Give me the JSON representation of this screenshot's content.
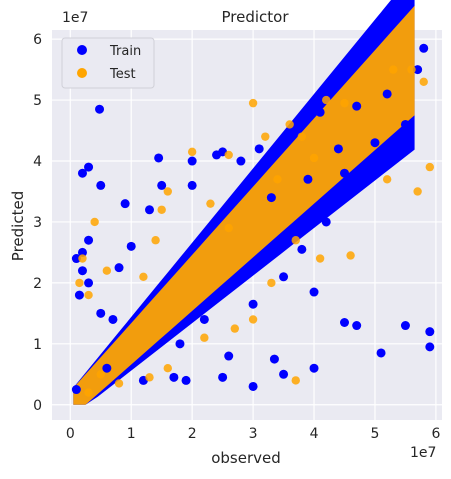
{
  "chart_data": {
    "type": "scatter",
    "title": "Predictor",
    "xlabel": "observed",
    "ylabel": "Predicted",
    "x_offset_label": "1e7",
    "y_offset_label": "1e7",
    "xlim": [
      -3000000,
      61000000
    ],
    "ylim": [
      -2500000,
      61500000
    ],
    "xticks": [
      0,
      10000000,
      20000000,
      30000000,
      40000000,
      50000000,
      60000000
    ],
    "xtick_labels": [
      "0",
      "1",
      "2",
      "3",
      "4",
      "5",
      "6"
    ],
    "yticks": [
      0,
      10000000,
      20000000,
      30000000,
      40000000,
      50000000,
      60000000
    ],
    "ytick_labels": [
      "0",
      "1",
      "2",
      "3",
      "4",
      "5",
      "6"
    ],
    "grid": true,
    "legend_position": "top-left",
    "series": [
      {
        "name": "Train",
        "color": "#0000ff",
        "points": [
          [
            1000000,
            2500000
          ],
          [
            2000000,
            38000000
          ],
          [
            4800000,
            48500000
          ],
          [
            3000000,
            39000000
          ],
          [
            5000000,
            36000000
          ],
          [
            2000000,
            25000000
          ],
          [
            3000000,
            27000000
          ],
          [
            14500000,
            40500000
          ],
          [
            20000000,
            40000000
          ],
          [
            24000000,
            41000000
          ],
          [
            25000000,
            41500000
          ],
          [
            1000000,
            24000000
          ],
          [
            2000000,
            22000000
          ],
          [
            3000000,
            20000000
          ],
          [
            1500000,
            18000000
          ],
          [
            33500000,
            7500000
          ],
          [
            40000000,
            6000000
          ],
          [
            45000000,
            13500000
          ],
          [
            47000000,
            13000000
          ],
          [
            51000000,
            8500000
          ],
          [
            55000000,
            13000000
          ],
          [
            59000000,
            12000000
          ],
          [
            59000000,
            9500000
          ],
          [
            35000000,
            5000000
          ],
          [
            30000000,
            3000000
          ],
          [
            25000000,
            4500000
          ],
          [
            19000000,
            4000000
          ],
          [
            17000000,
            4500000
          ],
          [
            26000000,
            8000000
          ],
          [
            30000000,
            16500000
          ],
          [
            35000000,
            21000000
          ],
          [
            40000000,
            18500000
          ],
          [
            55000000,
            46000000
          ],
          [
            58000000,
            58500000
          ],
          [
            57000000,
            55000000
          ],
          [
            50000000,
            43000000
          ],
          [
            45000000,
            38000000
          ],
          [
            42000000,
            30000000
          ],
          [
            38000000,
            25500000
          ],
          [
            33000000,
            34000000
          ],
          [
            8000000,
            22500000
          ],
          [
            10000000,
            26000000
          ],
          [
            5000000,
            15000000
          ],
          [
            6000000,
            6000000
          ],
          [
            13000000,
            32000000
          ],
          [
            15000000,
            36000000
          ],
          [
            9000000,
            33000000
          ],
          [
            20000000,
            36000000
          ],
          [
            12000000,
            4000000
          ],
          [
            22000000,
            14000000
          ],
          [
            28000000,
            40000000
          ],
          [
            31000000,
            42000000
          ],
          [
            36000000,
            44000000
          ],
          [
            39000000,
            37000000
          ],
          [
            44000000,
            42000000
          ],
          [
            47000000,
            49000000
          ],
          [
            52000000,
            51000000
          ],
          [
            41000000,
            48000000
          ],
          [
            18000000,
            10000000
          ],
          [
            7000000,
            14000000
          ]
        ]
      },
      {
        "name": "Test",
        "color": "#ffa500",
        "points": [
          [
            2000000,
            24000000
          ],
          [
            1500000,
            20000000
          ],
          [
            3000000,
            18000000
          ],
          [
            4000000,
            30000000
          ],
          [
            6000000,
            22000000
          ],
          [
            15000000,
            32000000
          ],
          [
            16000000,
            35000000
          ],
          [
            20000000,
            41500000
          ],
          [
            26000000,
            41000000
          ],
          [
            30000000,
            49500000
          ],
          [
            32000000,
            44000000
          ],
          [
            36000000,
            46000000
          ],
          [
            38000000,
            44000000
          ],
          [
            42000000,
            50000000
          ],
          [
            45000000,
            49500000
          ],
          [
            53000000,
            55000000
          ],
          [
            56000000,
            55000000
          ],
          [
            58000000,
            53000000
          ],
          [
            59000000,
            39000000
          ],
          [
            57000000,
            35000000
          ],
          [
            52000000,
            37000000
          ],
          [
            46000000,
            24500000
          ],
          [
            41000000,
            24000000
          ],
          [
            37000000,
            27000000
          ],
          [
            33000000,
            20000000
          ],
          [
            30000000,
            14000000
          ],
          [
            27000000,
            12500000
          ],
          [
            22000000,
            11000000
          ],
          [
            16000000,
            6000000
          ],
          [
            13000000,
            4500000
          ],
          [
            8000000,
            3500000
          ],
          [
            5000000,
            5000000
          ],
          [
            3000000,
            2000000
          ],
          [
            12000000,
            21000000
          ],
          [
            14000000,
            27000000
          ],
          [
            23000000,
            33000000
          ],
          [
            26000000,
            29000000
          ],
          [
            37000000,
            4000000
          ],
          [
            34000000,
            37000000
          ],
          [
            40000000,
            40500000
          ]
        ]
      }
    ]
  }
}
